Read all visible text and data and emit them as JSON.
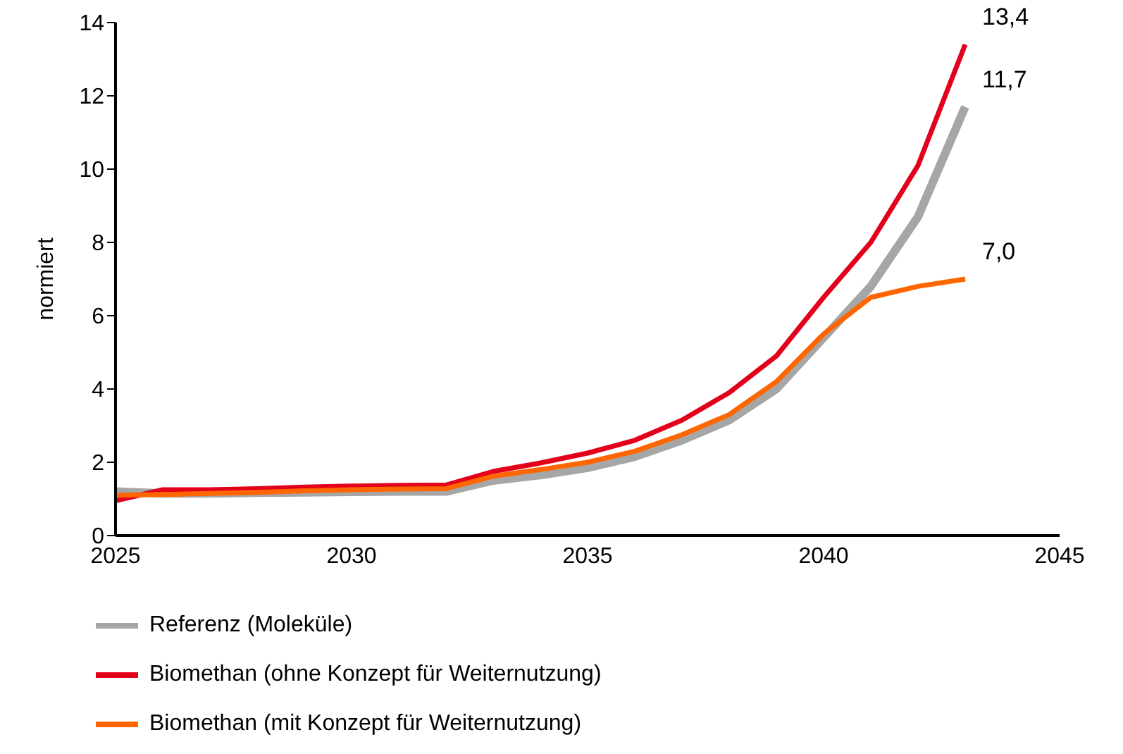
{
  "chart_data": {
    "type": "line",
    "ylabel": "normiert",
    "x": [
      2025,
      2026,
      2027,
      2028,
      2029,
      2030,
      2031,
      2032,
      2033,
      2034,
      2035,
      2036,
      2037,
      2038,
      2039,
      2040,
      2041,
      2042,
      2043
    ],
    "series": [
      {
        "name": "Referenz (Moleküle)",
        "color": "#a6a6a6",
        "values": [
          1.2,
          1.15,
          1.15,
          1.17,
          1.18,
          1.19,
          1.2,
          1.2,
          1.5,
          1.65,
          1.85,
          2.15,
          2.6,
          3.15,
          4.0,
          5.4,
          6.8,
          8.7,
          11.7
        ],
        "value_labels": [
          null,
          null,
          null,
          null,
          null,
          null,
          null,
          null,
          null,
          null,
          null,
          null,
          null,
          null,
          null,
          null,
          null,
          null,
          "11,7"
        ]
      },
      {
        "name": "Biomethan (ohne Konzept für Weiternutzung)",
        "color": "#e3001b",
        "values": [
          0.95,
          1.25,
          1.25,
          1.28,
          1.32,
          1.35,
          1.37,
          1.38,
          1.75,
          1.98,
          2.25,
          2.6,
          3.15,
          3.9,
          4.9,
          6.5,
          8.0,
          10.1,
          13.4
        ],
        "value_labels": [
          null,
          null,
          null,
          null,
          null,
          null,
          null,
          null,
          null,
          null,
          null,
          null,
          null,
          null,
          null,
          null,
          null,
          null,
          "13,4"
        ]
      },
      {
        "name": "Biomethan (mit Konzept für Weiternutzung)",
        "color": "#ff6600",
        "values": [
          1.1,
          1.12,
          1.15,
          1.18,
          1.22,
          1.25,
          1.27,
          1.28,
          1.62,
          1.8,
          2.0,
          2.3,
          2.75,
          3.3,
          4.2,
          5.5,
          6.5,
          6.8,
          7.0
        ],
        "value_labels": [
          null,
          null,
          null,
          null,
          null,
          null,
          null,
          null,
          null,
          null,
          null,
          null,
          null,
          null,
          null,
          null,
          null,
          null,
          "7,0"
        ]
      }
    ],
    "xlim": [
      2025,
      2045
    ],
    "xticks": [
      2025,
      2030,
      2035,
      2040,
      2045
    ],
    "ylim": [
      0,
      14
    ],
    "yticks": [
      0,
      2,
      4,
      6,
      8,
      10,
      12,
      14
    ],
    "grid": false,
    "legend": "bottom",
    "marker": "none",
    "line_style": "solid"
  }
}
